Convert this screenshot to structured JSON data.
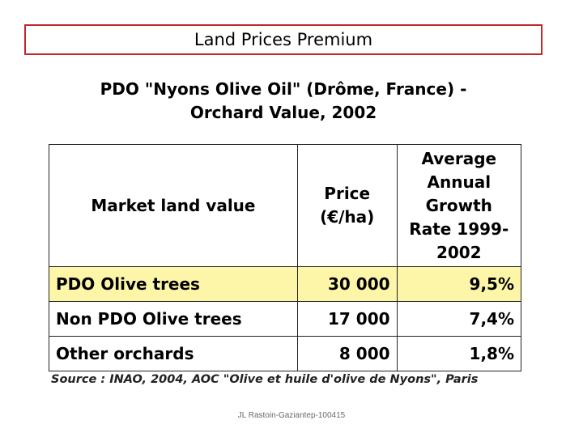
{
  "slide": {
    "title": "Land Prices Premium",
    "heading_line1": "PDO \"Nyons Olive Oil\" (Drôme, France) -",
    "heading_line2": "Orchard Value, 2002",
    "source": "Source : INAO, 2004, AOC \"Olive et huile d'olive de Nyons\", Paris",
    "footer": "JL Rastoin-Gaziantep-100415",
    "highlight_color": "#fdf6a8",
    "frame_color": "#c0282d"
  },
  "table": {
    "headers": {
      "col1": "Market land value",
      "col2_line1": "Price",
      "col2_line2": "(€/ha)",
      "col3_line1": "Average",
      "col3_line2": "Annual",
      "col3_line3": "Growth",
      "col3_line4": "Rate 1999-",
      "col3_line5": "2002"
    },
    "rows": [
      {
        "label": "PDO Olive trees",
        "price": "30 000",
        "growth": "9,5%"
      },
      {
        "label": "Non PDO Olive trees",
        "price": "17 000",
        "growth": "7,4%"
      },
      {
        "label": "Other orchards",
        "price": "8 000",
        "growth": "1,8%"
      }
    ]
  }
}
